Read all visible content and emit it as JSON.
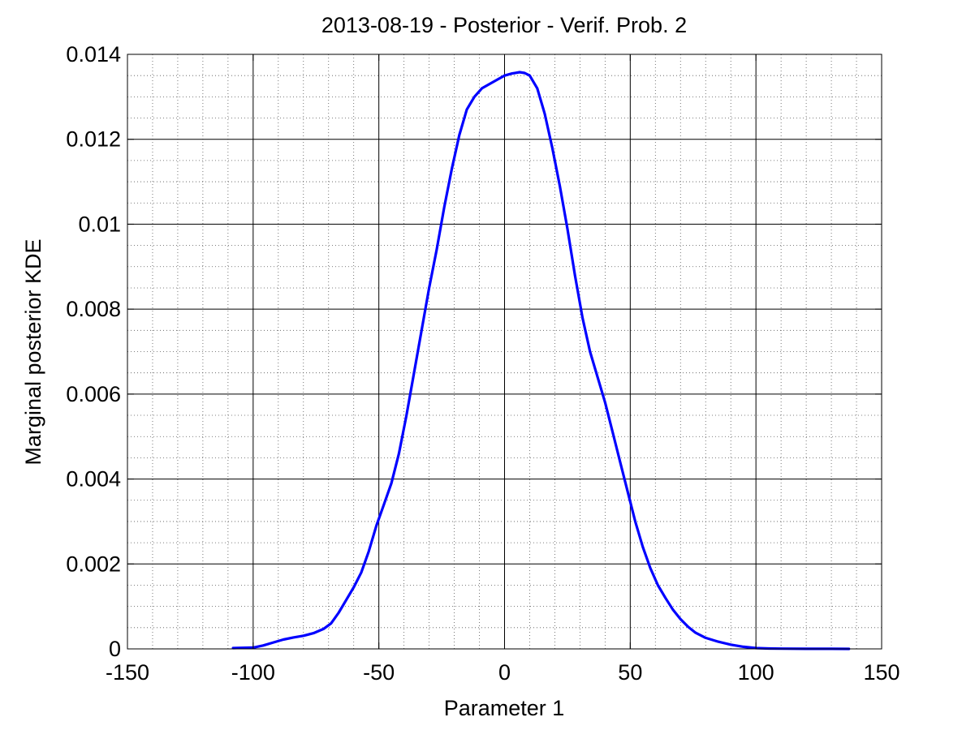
{
  "chart_data": {
    "type": "line",
    "title": "2013-08-19 - Posterior - Verif. Prob. 2",
    "xlabel": "Parameter 1",
    "ylabel": "Marginal posterior KDE",
    "xlim": [
      -150,
      150
    ],
    "ylim": [
      0,
      0.014
    ],
    "x_ticks": [
      -150,
      -100,
      -50,
      0,
      50,
      100,
      150
    ],
    "x_tick_labels": [
      "-150",
      "-100",
      "-50",
      "0",
      "50",
      "100",
      "150"
    ],
    "y_ticks": [
      0,
      0.002,
      0.004,
      0.006,
      0.008,
      0.01,
      0.012,
      0.014
    ],
    "y_tick_labels": [
      "0",
      "0.002",
      "0.004",
      "0.006",
      "0.008",
      "0.01",
      "0.012",
      "0.014"
    ],
    "grid": "major solid, minor dotted",
    "series": [
      {
        "color": "#0000ff",
        "x": [
          -108,
          -100,
          -96,
          -92,
          -88,
          -84,
          -80,
          -76,
          -72,
          -69,
          -66,
          -63,
          -60,
          -57,
          -54,
          -51,
          -48,
          -45,
          -42,
          -39,
          -36,
          -33,
          -30,
          -27,
          -24,
          -21,
          -18,
          -15,
          -12,
          -9,
          -6,
          -3,
          0,
          3,
          6,
          8,
          10,
          13,
          16,
          19,
          22,
          25,
          28,
          31,
          34,
          37,
          40,
          43,
          46,
          49,
          52,
          55,
          58,
          61,
          64,
          67,
          70,
          73,
          76,
          80,
          85,
          90,
          95,
          100,
          105,
          110,
          120,
          130,
          137
        ],
        "y": [
          2e-05,
          3e-05,
          8e-05,
          0.00015,
          0.00022,
          0.00027,
          0.00031,
          0.00037,
          0.00047,
          0.0006,
          0.00085,
          0.00115,
          0.00145,
          0.0018,
          0.0023,
          0.0029,
          0.0034,
          0.0039,
          0.0046,
          0.0055,
          0.0065,
          0.0075,
          0.0085,
          0.0094,
          0.0104,
          0.0113,
          0.0121,
          0.0127,
          0.013,
          0.0132,
          0.0133,
          0.0134,
          0.0135,
          0.01355,
          0.01358,
          0.01356,
          0.0135,
          0.0132,
          0.0126,
          0.0118,
          0.0109,
          0.0099,
          0.0088,
          0.0078,
          0.007,
          0.0064,
          0.0058,
          0.0051,
          0.0044,
          0.0037,
          0.003,
          0.0024,
          0.0019,
          0.0015,
          0.0012,
          0.00092,
          0.0007,
          0.00052,
          0.00038,
          0.00026,
          0.00017,
          0.0001,
          5e-05,
          2e-05,
          1e-05,
          5e-06,
          2e-06,
          1e-06,
          0.0
        ]
      }
    ]
  }
}
